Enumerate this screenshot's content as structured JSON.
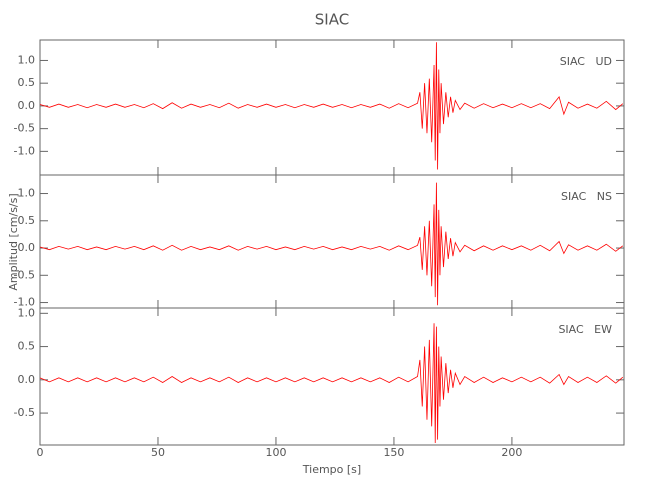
{
  "chart_data": [
    {
      "type": "line",
      "title": "SIAC",
      "annotation": "SIAC   UD",
      "x": [
        0,
        4,
        8,
        12,
        16,
        20,
        24,
        28,
        32,
        36,
        40,
        44,
        48,
        52,
        56,
        60,
        64,
        68,
        72,
        76,
        80,
        84,
        88,
        92,
        96,
        100,
        104,
        108,
        112,
        116,
        120,
        124,
        128,
        132,
        136,
        140,
        144,
        148,
        152,
        156,
        160,
        161,
        162,
        163,
        164,
        165,
        166,
        167,
        167.5,
        168,
        168.5,
        169,
        169.5,
        170,
        171,
        172,
        173,
        174,
        175,
        176,
        178,
        180,
        184,
        188,
        192,
        196,
        200,
        204,
        208,
        212,
        216,
        220,
        222,
        224,
        228,
        232,
        236,
        240,
        244,
        247
      ],
      "series": [
        {
          "color": "#ff0000",
          "values": [
            0.03,
            -0.03,
            0.04,
            -0.03,
            0.03,
            -0.04,
            0.03,
            -0.03,
            0.04,
            -0.03,
            0.03,
            -0.04,
            0.05,
            -0.06,
            0.07,
            -0.05,
            0.04,
            -0.03,
            0.03,
            -0.04,
            0.06,
            -0.05,
            0.03,
            -0.03,
            0.04,
            -0.03,
            0.03,
            -0.04,
            0.03,
            -0.03,
            0.04,
            -0.03,
            0.03,
            -0.04,
            0.03,
            -0.03,
            0.04,
            -0.05,
            0.05,
            -0.04,
            0.06,
            0.3,
            -0.5,
            0.5,
            -0.6,
            0.6,
            -0.8,
            0.9,
            -1.2,
            1.4,
            -1.4,
            0.8,
            -0.6,
            0.5,
            -0.4,
            0.3,
            -0.25,
            0.2,
            -0.15,
            0.12,
            -0.08,
            0.06,
            -0.05,
            0.05,
            -0.04,
            0.04,
            -0.04,
            0.05,
            -0.04,
            0.05,
            -0.06,
            0.2,
            -0.18,
            0.08,
            -0.05,
            0.04,
            -0.05,
            0.1,
            -0.08,
            0.05
          ]
        }
      ],
      "xlim": [
        0,
        247.5
      ],
      "ylim": [
        -1.52,
        1.45
      ],
      "yticks": [
        {
          "value": -1,
          "label": "-1.0"
        },
        -0.5,
        {
          "value": 0,
          "label": "0.0"
        },
        0.5,
        {
          "value": 1,
          "label": "1.0"
        }
      ]
    },
    {
      "type": "line",
      "annotation": "SIAC   NS",
      "ylabel": "Amplitud [cm/s/s]",
      "x": [
        0,
        4,
        8,
        12,
        16,
        20,
        24,
        28,
        32,
        36,
        40,
        44,
        48,
        52,
        56,
        60,
        64,
        68,
        72,
        76,
        80,
        84,
        88,
        92,
        96,
        100,
        104,
        108,
        112,
        116,
        120,
        124,
        128,
        132,
        136,
        140,
        144,
        148,
        152,
        156,
        160,
        161,
        162,
        163,
        164,
        165,
        166,
        167,
        167.5,
        168,
        168.5,
        169,
        169.5,
        170,
        171,
        172,
        173,
        174,
        175,
        176,
        178,
        180,
        184,
        188,
        192,
        196,
        200,
        204,
        208,
        212,
        216,
        220,
        222,
        224,
        228,
        232,
        236,
        240,
        244,
        247
      ],
      "series": [
        {
          "color": "#ff0000",
          "values": [
            0.02,
            -0.03,
            0.03,
            -0.02,
            0.03,
            -0.03,
            0.02,
            -0.03,
            0.03,
            -0.02,
            0.03,
            -0.03,
            0.04,
            -0.04,
            0.05,
            -0.04,
            0.03,
            -0.03,
            0.02,
            -0.03,
            0.04,
            -0.04,
            0.03,
            -0.02,
            0.03,
            -0.03,
            0.02,
            -0.03,
            0.03,
            -0.02,
            0.03,
            -0.03,
            0.02,
            -0.03,
            0.03,
            -0.02,
            0.03,
            -0.04,
            0.04,
            -0.03,
            0.05,
            0.2,
            -0.4,
            0.4,
            -0.5,
            0.5,
            -0.7,
            0.8,
            -0.9,
            1.2,
            -1.05,
            0.7,
            -0.5,
            0.4,
            -0.35,
            0.3,
            -0.2,
            0.18,
            -0.15,
            0.1,
            -0.07,
            0.05,
            -0.05,
            0.04,
            -0.04,
            0.04,
            -0.03,
            0.04,
            -0.04,
            0.05,
            -0.05,
            0.12,
            -0.1,
            0.06,
            -0.04,
            0.04,
            -0.04,
            0.07,
            -0.06,
            0.04
          ]
        }
      ],
      "xlim": [
        0,
        247.5
      ],
      "ylim": [
        -1.1,
        1.34
      ],
      "yticks": [
        {
          "value": -1,
          "label": "-1.0"
        },
        -0.5,
        {
          "value": 0,
          "label": "0.0"
        },
        0.5,
        {
          "value": 1,
          "label": "1.0"
        }
      ]
    },
    {
      "type": "line",
      "annotation": "SIAC   EW",
      "xlabel": "Tiempo [s]",
      "x": [
        0,
        4,
        8,
        12,
        16,
        20,
        24,
        28,
        32,
        36,
        40,
        44,
        48,
        52,
        56,
        60,
        64,
        68,
        72,
        76,
        80,
        84,
        88,
        92,
        96,
        100,
        104,
        108,
        112,
        116,
        120,
        124,
        128,
        132,
        136,
        140,
        144,
        148,
        152,
        156,
        160,
        161,
        162,
        163,
        164,
        165,
        166,
        167,
        167.5,
        168,
        168.5,
        169,
        169.5,
        170,
        171,
        172,
        173,
        174,
        175,
        176,
        178,
        180,
        184,
        188,
        192,
        196,
        200,
        204,
        208,
        212,
        216,
        220,
        222,
        224,
        228,
        232,
        236,
        240,
        244,
        247
      ],
      "series": [
        {
          "color": "#ff0000",
          "values": [
            0.03,
            -0.03,
            0.03,
            -0.03,
            0.03,
            -0.03,
            0.03,
            -0.03,
            0.03,
            -0.03,
            0.03,
            -0.03,
            0.04,
            -0.04,
            0.05,
            -0.04,
            0.03,
            -0.03,
            0.03,
            -0.03,
            0.04,
            -0.04,
            0.03,
            -0.03,
            0.03,
            -0.03,
            0.03,
            -0.03,
            0.03,
            -0.03,
            0.03,
            -0.03,
            0.03,
            -0.03,
            0.03,
            -0.03,
            0.03,
            -0.04,
            0.04,
            -0.03,
            0.05,
            0.3,
            -0.4,
            0.5,
            -0.6,
            0.6,
            -0.7,
            0.85,
            -0.95,
            0.8,
            -0.9,
            0.5,
            -0.4,
            0.35,
            -0.3,
            0.25,
            -0.2,
            0.15,
            -0.12,
            0.1,
            -0.07,
            0.05,
            -0.04,
            0.04,
            -0.04,
            0.03,
            -0.03,
            0.04,
            -0.03,
            0.04,
            -0.05,
            0.08,
            -0.07,
            0.05,
            -0.04,
            0.04,
            -0.04,
            0.06,
            -0.05,
            0.04
          ]
        }
      ],
      "xlim": [
        0,
        247.5
      ],
      "ylim": [
        -0.98,
        1.08
      ],
      "yticks": [
        -0.5,
        {
          "value": 0,
          "label": "0.0"
        },
        0.5,
        {
          "value": 1,
          "label": "1.0"
        }
      ],
      "xticks": [
        0,
        50,
        100,
        150,
        200
      ]
    }
  ]
}
